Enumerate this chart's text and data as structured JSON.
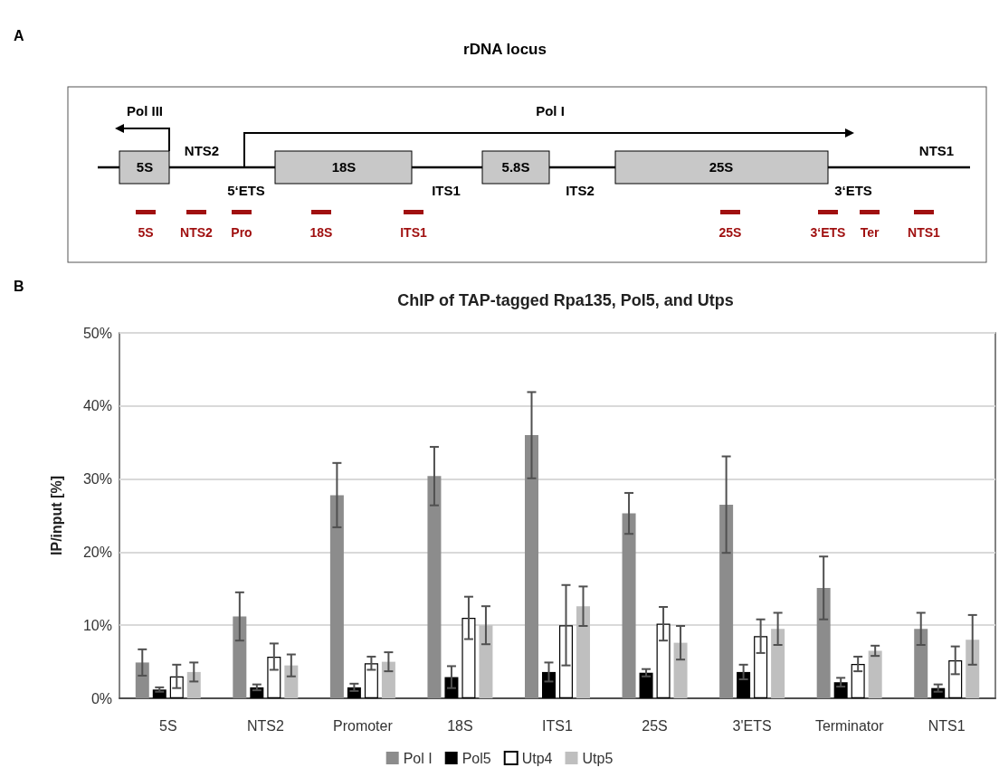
{
  "chart_data": [
    {
      "type": "other",
      "title": "rDNA locus",
      "annotations": [
        "A",
        "Pol III",
        "Pol I",
        "5S",
        "NTS2",
        "5‘ETS",
        "18S",
        "ITS1",
        "5.8S",
        "ITS2",
        "25S",
        "3‘ETS",
        "NTS1",
        "5S",
        "NTS2",
        "Pro",
        "18S",
        "ITS1",
        "25S",
        "3‘ETS",
        "Ter",
        "NTS1"
      ]
    },
    {
      "type": "bar",
      "title": "ChIP of TAP-tagged Rpa135, Pol5, and Utps",
      "ylabel": "IP/input [%]",
      "annotations": [
        "B"
      ],
      "categories": [
        "5S",
        "NTS2",
        "Promoter",
        "18S",
        "ITS1",
        "25S",
        "3'ETS",
        "Terminator",
        "NTS1"
      ],
      "series": [
        {
          "name": "Pol I",
          "color": "#8c8c8c",
          "values": [
            4.9,
            11.2,
            27.8,
            30.4,
            36.0,
            25.3,
            26.5,
            15.1,
            9.5
          ],
          "errors": [
            1.8,
            3.3,
            4.4,
            4.0,
            5.9,
            2.8,
            6.6,
            4.3,
            2.2
          ]
        },
        {
          "name": "Pol5",
          "color": "#000000",
          "values": [
            1.2,
            1.5,
            1.5,
            2.9,
            3.6,
            3.5,
            3.6,
            2.2,
            1.4
          ],
          "errors": [
            0.3,
            0.4,
            0.5,
            1.5,
            1.3,
            0.5,
            1.0,
            0.6,
            0.5
          ]
        },
        {
          "name": "Utp4",
          "color": "#ffffff",
          "values": [
            3.0,
            5.7,
            4.8,
            11.0,
            10.0,
            10.2,
            8.5,
            4.7,
            5.2
          ],
          "errors": [
            1.6,
            1.8,
            0.9,
            2.9,
            5.5,
            2.3,
            2.3,
            1.0,
            1.9
          ]
        },
        {
          "name": "Utp5",
          "color": "#bfbfbf",
          "values": [
            3.6,
            4.5,
            5.0,
            10.0,
            12.6,
            7.6,
            9.5,
            6.5,
            8.0
          ],
          "errors": [
            1.3,
            1.5,
            1.3,
            2.6,
            2.7,
            2.3,
            2.2,
            0.7,
            3.4
          ]
        }
      ],
      "ylim": [
        0,
        50
      ],
      "yticks": [
        {
          "value": 0,
          "label": "0%"
        },
        {
          "value": 10,
          "label": "10%"
        },
        {
          "value": 20,
          "label": "20%"
        },
        {
          "value": 30,
          "label": "30%"
        },
        {
          "value": 40,
          "label": "40%"
        },
        {
          "value": 50,
          "label": "50%"
        }
      ],
      "grid": "y",
      "legend": "bottom"
    }
  ]
}
